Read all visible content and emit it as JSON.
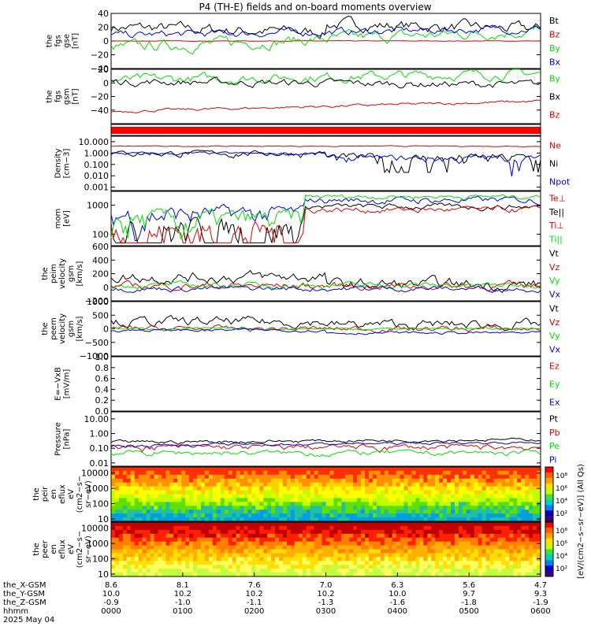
{
  "title": "P4 (TH-E) fields and on-board moments overview",
  "colors": {
    "black": "#000000",
    "red": "#e00000",
    "green": "#00e000",
    "blue": "#0000e0"
  },
  "chart_data": {
    "type": "line",
    "time_axis": {
      "ticks": [
        "0000",
        "0100",
        "0200",
        "0300",
        "0400",
        "0500",
        "0600"
      ],
      "orbit_rows": [
        {
          "label": "the_X-GSM",
          "values": [
            "8.6",
            "8.1",
            "7.6",
            "7.0",
            "6.3",
            "5.6",
            "4.7"
          ]
        },
        {
          "label": "the_Y-GSM",
          "values": [
            "10.0",
            "10.2",
            "10.2",
            "10.2",
            "10.0",
            "9.7",
            "9.3"
          ]
        },
        {
          "label": "the_Z-GSM",
          "values": [
            "-0.9",
            "-1.0",
            "-1.1",
            "-1.3",
            "-1.6",
            "-1.8",
            "-1.9"
          ]
        },
        {
          "label": "hhmm",
          "values": [
            "0000",
            "0100",
            "0200",
            "0300",
            "0400",
            "0500",
            "0600"
          ]
        }
      ],
      "date": "2025 May 04"
    },
    "panels": [
      {
        "id": "fgs_gse",
        "ylabel": [
          "the",
          "fgs",
          "gse",
          "[nT]"
        ],
        "scale": "linear",
        "ylim": [
          -40,
          40
        ],
        "ticks": [
          "40",
          "20",
          "0",
          "−20",
          "−40"
        ],
        "series": [
          {
            "name": "Bt",
            "color": "black"
          },
          {
            "name": "Bz",
            "color": "red"
          },
          {
            "name": "By",
            "color": "green"
          },
          {
            "name": "Bx",
            "color": "blue"
          }
        ]
      },
      {
        "id": "fgs_gsm",
        "ylabel": [
          "the",
          "fgs",
          "gsm",
          "[nT]"
        ],
        "scale": "linear",
        "ylim": [
          -60,
          20
        ],
        "ticks": [
          "20",
          "0",
          "−20",
          "−40"
        ],
        "series": [
          {
            "name": "By",
            "color": "green"
          },
          {
            "name": "Bx",
            "color": "black"
          },
          {
            "name": "Bz",
            "color": "red"
          }
        ]
      },
      {
        "id": "flag",
        "ylabel": [],
        "scale": "linear",
        "ylim": [
          0,
          1
        ],
        "ticks": [],
        "series": []
      },
      {
        "id": "density",
        "ylabel": [
          "Density",
          "[cm−3]"
        ],
        "scale": "log",
        "ylim": [
          0.0005,
          30
        ],
        "ticks": [
          "10.000",
          "1.000",
          "0.100",
          "0.010",
          "0.001"
        ],
        "series": [
          {
            "name": "Ne",
            "color": "red"
          },
          {
            "name": "Ni",
            "color": "black"
          },
          {
            "name": "Npot",
            "color": "blue"
          }
        ]
      },
      {
        "id": "temperature",
        "ylabel": [
          "mom",
          "[eV]"
        ],
        "scale": "log",
        "ylim": [
          40,
          3000
        ],
        "ticks": [
          "1000",
          "100"
        ],
        "series": [
          {
            "name": "Te⊥",
            "color": "red"
          },
          {
            "name": "Te||",
            "color": "black"
          },
          {
            "name": "Ti⊥",
            "color": "red"
          },
          {
            "name": "Ti||",
            "color": "green"
          }
        ]
      },
      {
        "id": "vel_peim",
        "ylabel": [
          "the",
          "peim",
          "velocity",
          "gsm",
          "[km/s]"
        ],
        "scale": "linear",
        "ylim": [
          -200,
          600
        ],
        "ticks": [
          "600",
          "400",
          "200",
          "0",
          "−200"
        ],
        "series": [
          {
            "name": "Vt",
            "color": "black"
          },
          {
            "name": "Vz",
            "color": "red"
          },
          {
            "name": "Vy",
            "color": "green"
          },
          {
            "name": "Vx",
            "color": "blue"
          }
        ]
      },
      {
        "id": "vel_peem",
        "ylabel": [
          "the",
          "peem",
          "velocity",
          "gsm",
          "[km/s]"
        ],
        "scale": "linear",
        "ylim": [
          -1000,
          1000
        ],
        "ticks": [
          "1000",
          "500",
          "0",
          "−500",
          "−1000"
        ],
        "series": [
          {
            "name": "Vt",
            "color": "black"
          },
          {
            "name": "Vz",
            "color": "red"
          },
          {
            "name": "Vy",
            "color": "green"
          },
          {
            "name": "Vx",
            "color": "blue"
          }
        ]
      },
      {
        "id": "efield",
        "ylabel": [
          "E=−VxB",
          "[mV/m]"
        ],
        "scale": "linear",
        "ylim": [
          0,
          1
        ],
        "ticks": [
          "1.0",
          "0.8",
          "0.6",
          "0.4",
          "0.2",
          "0.0"
        ],
        "series": [
          {
            "name": "Ez",
            "color": "red"
          },
          {
            "name": "Ey",
            "color": "green"
          },
          {
            "name": "Ex",
            "color": "blue"
          }
        ]
      },
      {
        "id": "pressure",
        "ylabel": [
          "Pressure",
          "[nPa]"
        ],
        "scale": "log",
        "ylim": [
          0.006,
          30
        ],
        "ticks": [
          "10.00",
          "1.00",
          "0.10",
          "0.01"
        ],
        "series": [
          {
            "name": "Pt",
            "color": "black"
          },
          {
            "name": "Pb",
            "color": "red"
          },
          {
            "name": "Pe",
            "color": "green"
          },
          {
            "name": "Pi",
            "color": "blue"
          }
        ]
      },
      {
        "id": "peir_spec",
        "type": "heatmap",
        "ylabel": [
          "the",
          "peir",
          "en",
          "eflux",
          "eV",
          "(cm2−s−",
          "sr−eV)"
        ],
        "scale": "log",
        "ylim": [
          7,
          25000
        ],
        "ticks": [
          "10000",
          "1000",
          "100",
          "10"
        ]
      },
      {
        "id": "peer_spec",
        "type": "heatmap",
        "ylabel": [
          "the",
          "peer",
          "en",
          "eflux",
          "eV",
          "(cm2−s−",
          "sr−eV)"
        ],
        "scale": "log",
        "ylim": [
          7,
          25000
        ],
        "ticks": [
          "10000",
          "1000",
          "100",
          "10"
        ]
      }
    ],
    "colorbar": {
      "label": "[eV/(cm2−s−sr−eV)] (All Qs)",
      "range_note": "log scale",
      "ticks_ion": [
        "10⁸",
        "10⁶",
        "10⁴",
        "10²"
      ],
      "ticks_ele": [
        "10⁸",
        "10⁶",
        "10⁴",
        "10²"
      ]
    }
  }
}
